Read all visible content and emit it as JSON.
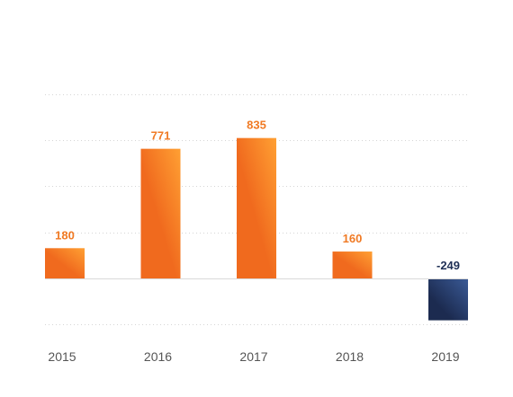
{
  "chart_data": {
    "type": "bar",
    "categories": [
      "2015",
      "2016",
      "2017",
      "2018",
      "2019"
    ],
    "values": [
      180,
      771,
      835,
      160,
      -249
    ],
    "value_labels": [
      "180",
      "771",
      "835",
      "160",
      "-249"
    ],
    "title": "",
    "xlabel": "",
    "ylabel": "",
    "ylim": [
      -274,
      1100
    ],
    "gridlines": [
      -274,
      0,
      274,
      548,
      822,
      1096
    ],
    "grid": true,
    "grid_style": "dotted",
    "legend": "none",
    "colors": {
      "positive_light": "#ffa033",
      "positive_dark": "#f06a1e",
      "positive_label": "#f07a24",
      "negative_light": "#3a5a96",
      "negative_dark": "#1c2b50",
      "negative_label": "#1f2f55",
      "grid": "#d6d6d6",
      "axis": "#d9d9d9",
      "tick_text": "#555555"
    }
  }
}
